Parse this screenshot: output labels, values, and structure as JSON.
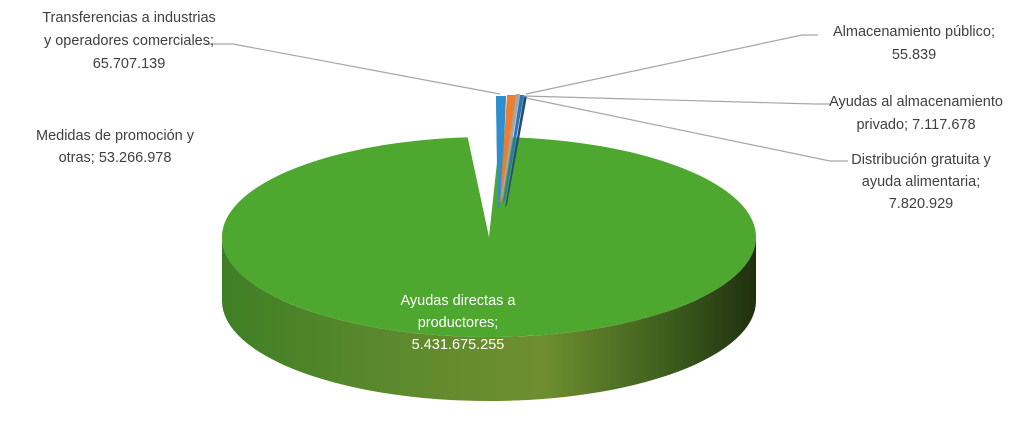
{
  "chart_data": {
    "type": "pie",
    "title": "",
    "three_d": true,
    "slices": [
      {
        "label_lines": [
          "Ayudas directas a",
          "productores;",
          "5.431.675.255"
        ],
        "category": "Ayudas directas a productores",
        "value": 5431675255,
        "value_text": "5.431.675.255",
        "color": "#4ea72e"
      },
      {
        "label_lines": [
          "Distribución gratuita y",
          "ayuda alimentaria;",
          "7.820.929"
        ],
        "category": "Distribución gratuita y ayuda alimentaria",
        "value": 7820929,
        "value_text": "7.820.929",
        "color": "#1f4e79"
      },
      {
        "label_lines": [
          "Ayudas al almacenamiento",
          "privado; 7.117.678"
        ],
        "category": "Ayudas al almacenamiento privado",
        "value": 7117678,
        "value_text": "7.117.678",
        "color": "#2e75b6"
      },
      {
        "label_lines": [
          "Almacenamiento público;",
          "55.839"
        ],
        "category": "Almacenamiento público",
        "value": 55839,
        "value_text": "55.839",
        "color": "#a5a5a5"
      },
      {
        "label_lines": [
          "Medidas de promoción y",
          "otras; 53.266.978"
        ],
        "category": "Medidas de promoción y otras",
        "value": 53266978,
        "value_text": "53.266.978",
        "color": "#ed7d31"
      },
      {
        "label_lines": [
          "Transferencias a industrias",
          "y operadores comerciales;",
          "65.707.139"
        ],
        "category": "Transferencias a industrias y operadores comerciales",
        "value": 65707139,
        "value_text": "65.707.139",
        "color": "#2e8fd0"
      }
    ]
  }
}
